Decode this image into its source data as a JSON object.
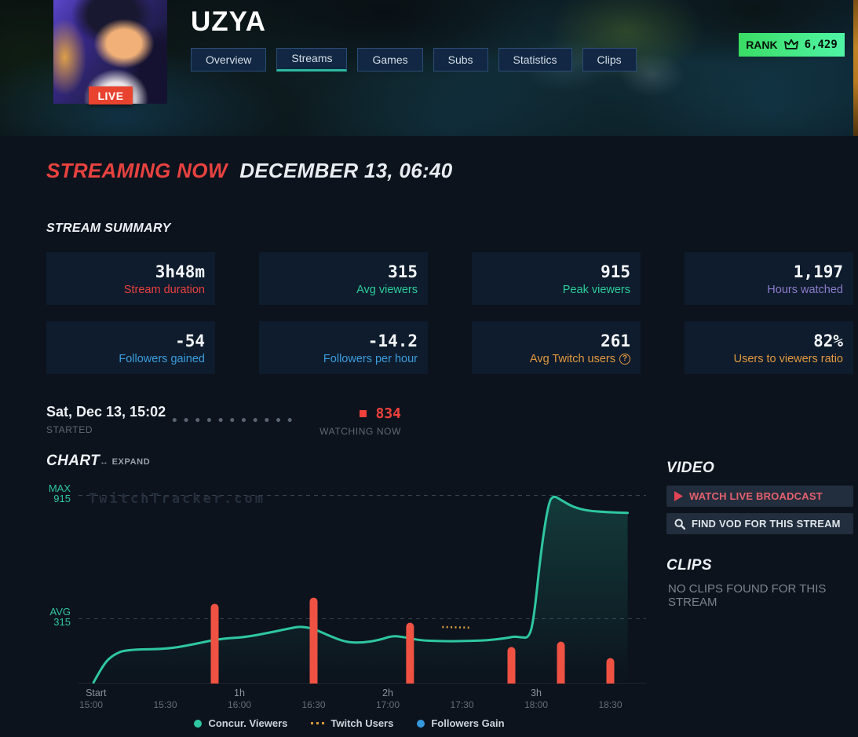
{
  "header": {
    "title": "UZYA",
    "live_badge": "LIVE",
    "rank": {
      "label": "RANK",
      "value": "6,429"
    },
    "tabs": [
      {
        "label": "Overview",
        "active": false
      },
      {
        "label": "Streams",
        "active": true
      },
      {
        "label": "Games",
        "active": false
      },
      {
        "label": "Subs",
        "active": false
      },
      {
        "label": "Statistics",
        "active": false
      },
      {
        "label": "Clips",
        "active": false
      }
    ]
  },
  "streaming_now": {
    "label": "STREAMING NOW",
    "datetime": "DECEMBER 13, 06:40"
  },
  "summary": {
    "heading": "STREAM SUMMARY",
    "cards": [
      {
        "value": "3h48m",
        "label": "Stream duration",
        "color": "#e8413e"
      },
      {
        "value": "315",
        "label": "Avg viewers",
        "color": "#2ecc9a"
      },
      {
        "value": "915",
        "label": "Peak viewers",
        "color": "#2ecc9a"
      },
      {
        "value": "1,197",
        "label": "Hours watched",
        "color": "#8d7bca"
      },
      {
        "value": "-54",
        "label": "Followers gained",
        "color": "#3b9ddd"
      },
      {
        "value": "-14.2",
        "label": "Followers per hour",
        "color": "#3b9ddd"
      },
      {
        "value": "261",
        "label": "Avg Twitch users",
        "color": "#e2993f",
        "help": true
      },
      {
        "value": "82%",
        "label": "Users to viewers ratio",
        "color": "#e2993f"
      }
    ]
  },
  "started": {
    "datetime": "Sat, Dec 13, 15:02",
    "label": "STARTED"
  },
  "watching": {
    "value": "834",
    "label": "WATCHING NOW"
  },
  "chart": {
    "heading": "CHART",
    "expand_label": "EXPAND",
    "expand_icon": "↔",
    "watermark": "TwitchTracker.com",
    "max_label": "MAX",
    "max_value": "915",
    "avg_label": "AVG",
    "avg_value": "315"
  },
  "chart_data": {
    "type": "line+bar",
    "title": "Concurrent viewers during stream",
    "ylim": [
      0,
      1000
    ],
    "gridlines": {
      "max": 915,
      "avg": 315
    },
    "x_hours": [
      {
        "label": "Start",
        "min": 2
      },
      {
        "label": "1h",
        "min": 60
      },
      {
        "label": "2h",
        "min": 120
      },
      {
        "label": "3h",
        "min": 180
      }
    ],
    "x_times": [
      {
        "label": "15:00",
        "min": 0
      },
      {
        "label": "15:30",
        "min": 30
      },
      {
        "label": "16:00",
        "min": 60
      },
      {
        "label": "16:30",
        "min": 90
      },
      {
        "label": "17:00",
        "min": 120
      },
      {
        "label": "17:30",
        "min": 150
      },
      {
        "label": "18:00",
        "min": 180
      },
      {
        "label": "18:30",
        "min": 210
      }
    ],
    "series": [
      {
        "name": "Concur. Viewers",
        "type": "line",
        "color": "#2ec7a2",
        "points": [
          [
            1,
            5
          ],
          [
            5,
            95
          ],
          [
            9,
            140
          ],
          [
            14,
            165
          ],
          [
            31,
            168
          ],
          [
            41,
            190
          ],
          [
            52,
            218
          ],
          [
            62,
            225
          ],
          [
            71,
            245
          ],
          [
            81,
            270
          ],
          [
            85,
            278
          ],
          [
            90,
            267
          ],
          [
            97,
            229
          ],
          [
            103,
            202
          ],
          [
            109,
            198
          ],
          [
            116,
            210
          ],
          [
            122,
            233
          ],
          [
            127,
            225
          ],
          [
            133,
            210
          ],
          [
            141,
            206
          ],
          [
            150,
            206
          ],
          [
            160,
            210
          ],
          [
            168,
            221
          ],
          [
            171,
            229
          ],
          [
            174,
            225
          ],
          [
            177,
            222
          ],
          [
            179,
            306
          ],
          [
            182,
            650
          ],
          [
            185,
            880
          ],
          [
            187,
            915
          ],
          [
            190,
            893
          ],
          [
            195,
            858
          ],
          [
            201,
            840
          ],
          [
            209,
            833
          ],
          [
            217,
            830
          ]
        ]
      },
      {
        "name": "Twitch Users",
        "type": "dotted-line",
        "color": "#d99b3c",
        "points": [
          [
            142,
            275
          ],
          [
            153,
            272
          ]
        ]
      },
      {
        "name": "Followers Gain",
        "type": "bar",
        "color": "#ef5243",
        "note": "spikes rendered red (negative follower events)",
        "points": [
          [
            50,
            388
          ],
          [
            90,
            418
          ],
          [
            129,
            296
          ],
          [
            170,
            178
          ],
          [
            190,
            204
          ],
          [
            210,
            124
          ]
        ]
      }
    ],
    "legend": [
      {
        "label": "Concur. Viewers",
        "color": "#2ec7a2",
        "style": "dot"
      },
      {
        "label": "Twitch Users",
        "color": "#d99b3c",
        "style": "dashes"
      },
      {
        "label": "Followers Gain",
        "color": "#3598dc",
        "style": "dot"
      }
    ]
  },
  "video": {
    "heading": "VIDEO",
    "watch_live_label": "WATCH LIVE BROADCAST",
    "find_vod_label": "FIND VOD FOR THIS STREAM"
  },
  "clips": {
    "heading": "CLIPS",
    "empty_message": "NO CLIPS FOUND FOR THIS STREAM"
  }
}
